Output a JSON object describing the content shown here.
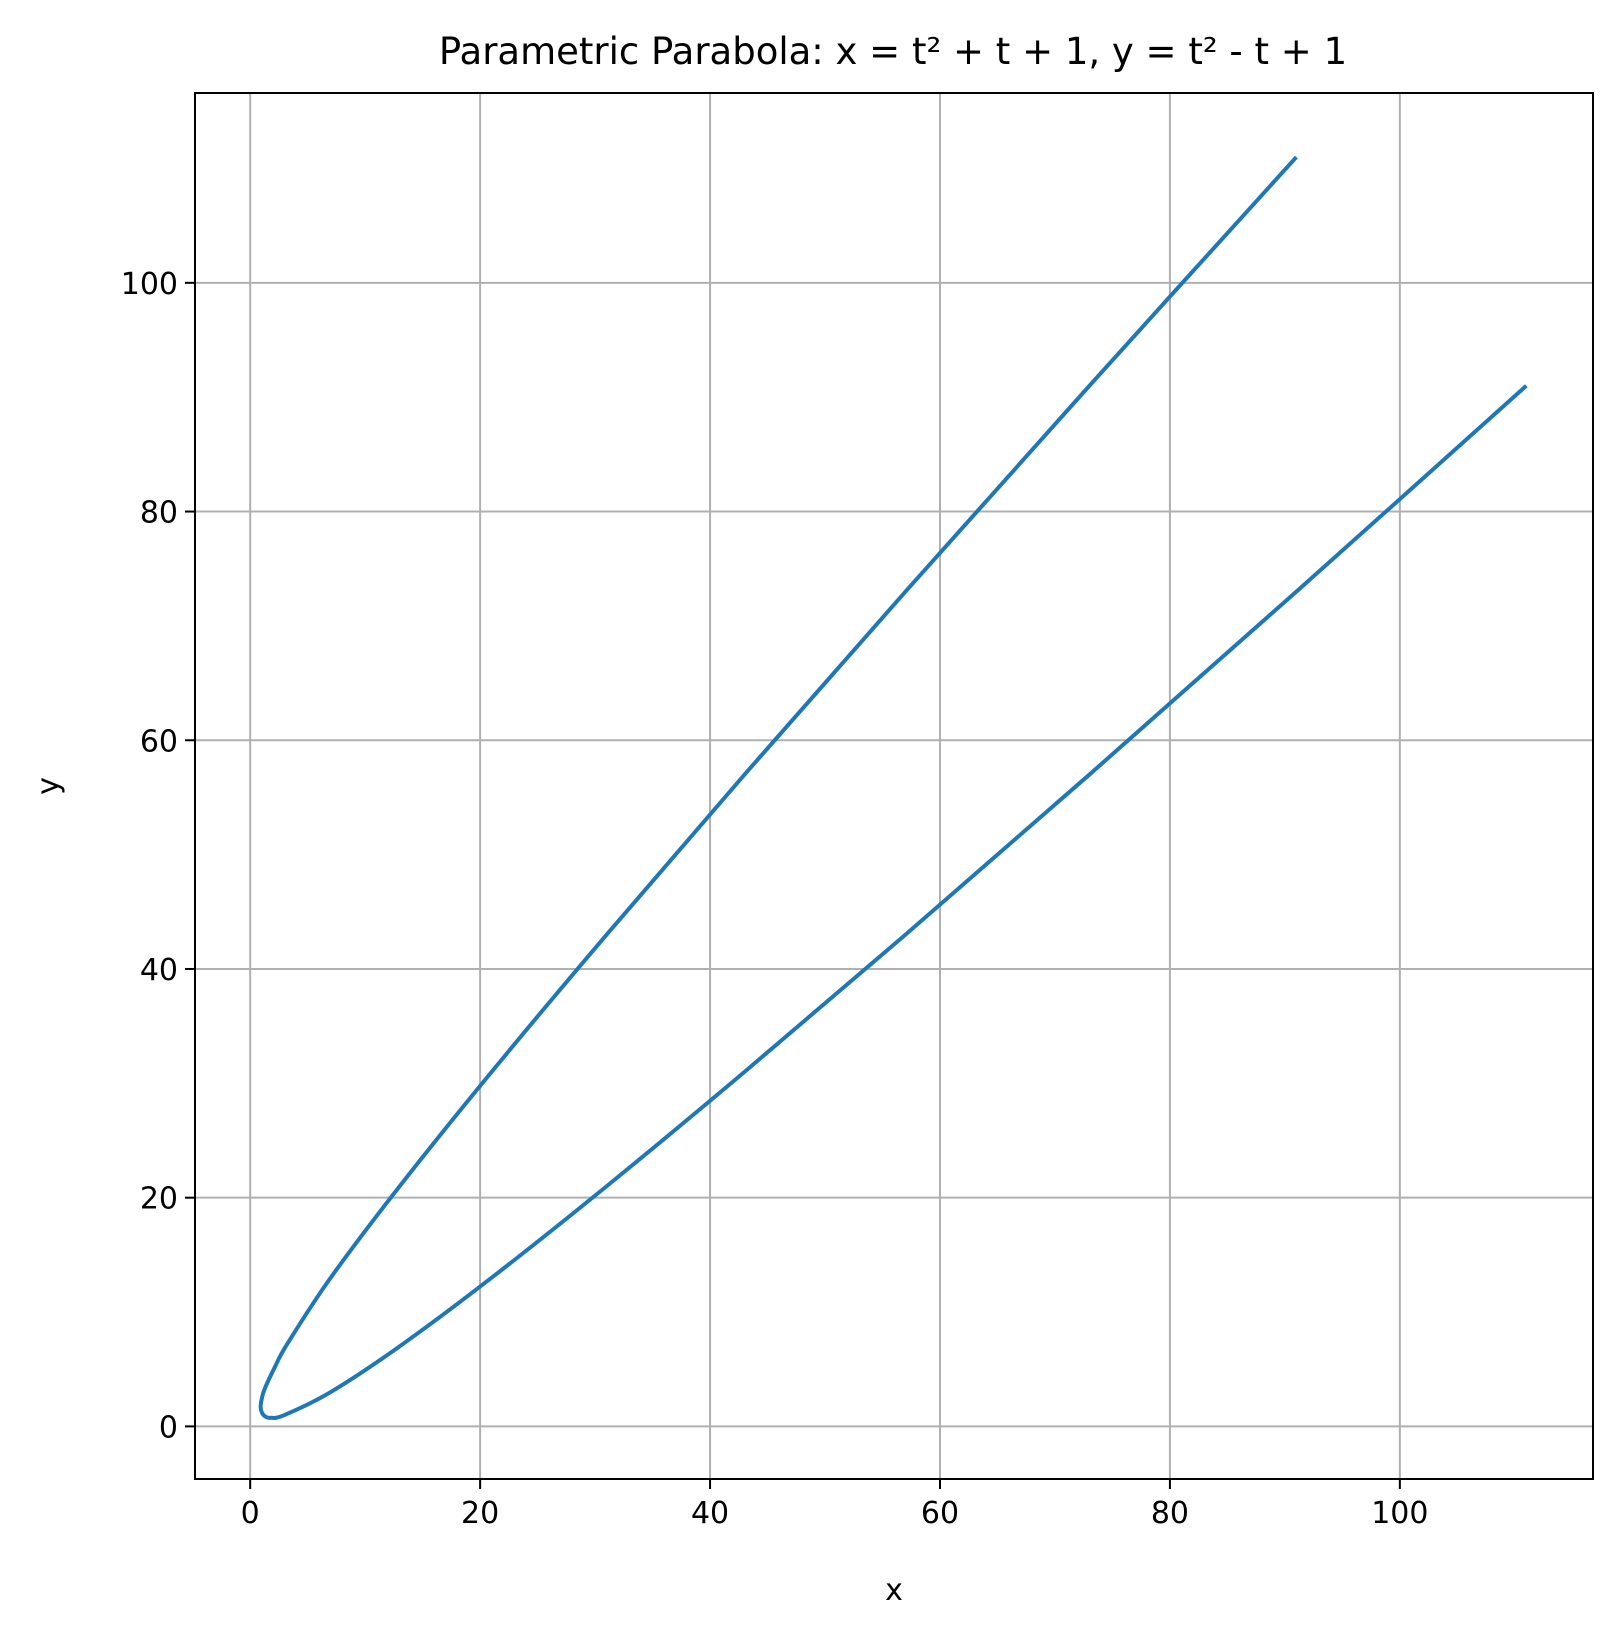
{
  "chart_data": {
    "type": "line",
    "title": "Parametric Parabola: x = t² + t + 1, y = t² - t + 1",
    "xlabel": "x",
    "ylabel": "y",
    "xlim": [
      -4.8,
      116.8
    ],
    "ylim": [
      -4.6,
      116.6
    ],
    "xticks": [
      0,
      20,
      40,
      60,
      80,
      100
    ],
    "yticks": [
      0,
      20,
      40,
      60,
      80,
      100
    ],
    "xtick_labels": [
      "0",
      "20",
      "40",
      "60",
      "80",
      "100"
    ],
    "ytick_labels": [
      "0",
      "20",
      "40",
      "60",
      "80",
      "100"
    ],
    "grid": true,
    "series": [
      {
        "color": "#1f77b4",
        "x": [
          91,
          73,
          57,
          43,
          31,
          21,
          13,
          7,
          3.25,
          2.11,
          1.25,
          1,
          0.91,
          1,
          1.25,
          1.75,
          3,
          7,
          13,
          21,
          31,
          43,
          57,
          73,
          91,
          111
        ],
        "y": [
          111,
          91,
          73,
          57,
          43,
          31,
          21,
          13,
          7.25,
          5.11,
          3.25,
          2.38,
          1.69,
          1.25,
          0.91,
          0.75,
          1,
          3,
          7,
          13,
          21,
          31,
          43,
          57,
          73,
          91
        ]
      }
    ]
  }
}
